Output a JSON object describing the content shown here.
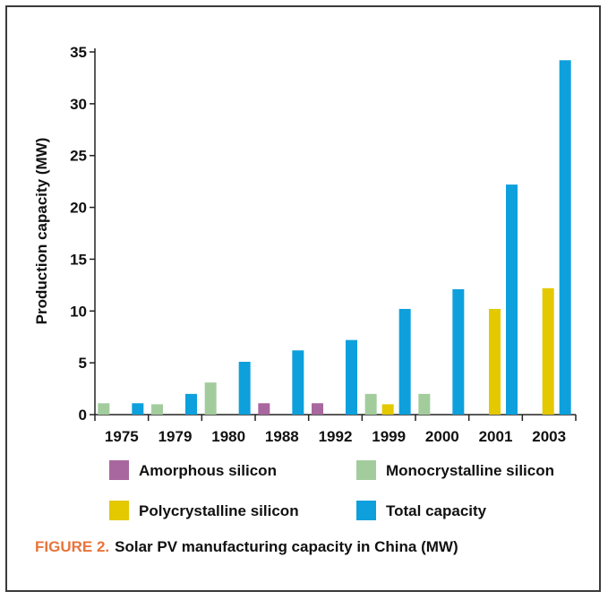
{
  "chart_data": {
    "type": "bar",
    "ylabel": "Production capacity (MW)",
    "ylim": [
      0,
      35
    ],
    "yticks": [
      0,
      5,
      10,
      15,
      20,
      25,
      30,
      35
    ],
    "categories": [
      "1975",
      "1979",
      "1980",
      "1988",
      "1992",
      "1999",
      "2000",
      "2001",
      "2003"
    ],
    "series": [
      {
        "name": "Amorphous silicon",
        "color": "#a8679e",
        "values": [
          0,
          0,
          0,
          1.1,
          1.1,
          0,
          0,
          0,
          0
        ]
      },
      {
        "name": "Monocrystalline silicon",
        "color": "#a3cc9d",
        "values": [
          1.1,
          1.0,
          3.1,
          0,
          0,
          2.0,
          2.0,
          0,
          0
        ]
      },
      {
        "name": "Polycrystalline silicon",
        "color": "#e4c800",
        "values": [
          0,
          0,
          0,
          0,
          0,
          1.0,
          0,
          10.2,
          12.2
        ]
      },
      {
        "name": "Total capacity",
        "color": "#0ea0dc",
        "values": [
          1.1,
          2.0,
          5.1,
          6.2,
          7.2,
          10.2,
          12.1,
          22.2,
          34.2
        ]
      }
    ],
    "legend": "below"
  },
  "caption": {
    "figure_label": "FIGURE 2.",
    "text": "Solar PV manufacturing capacity in China (MW)"
  }
}
